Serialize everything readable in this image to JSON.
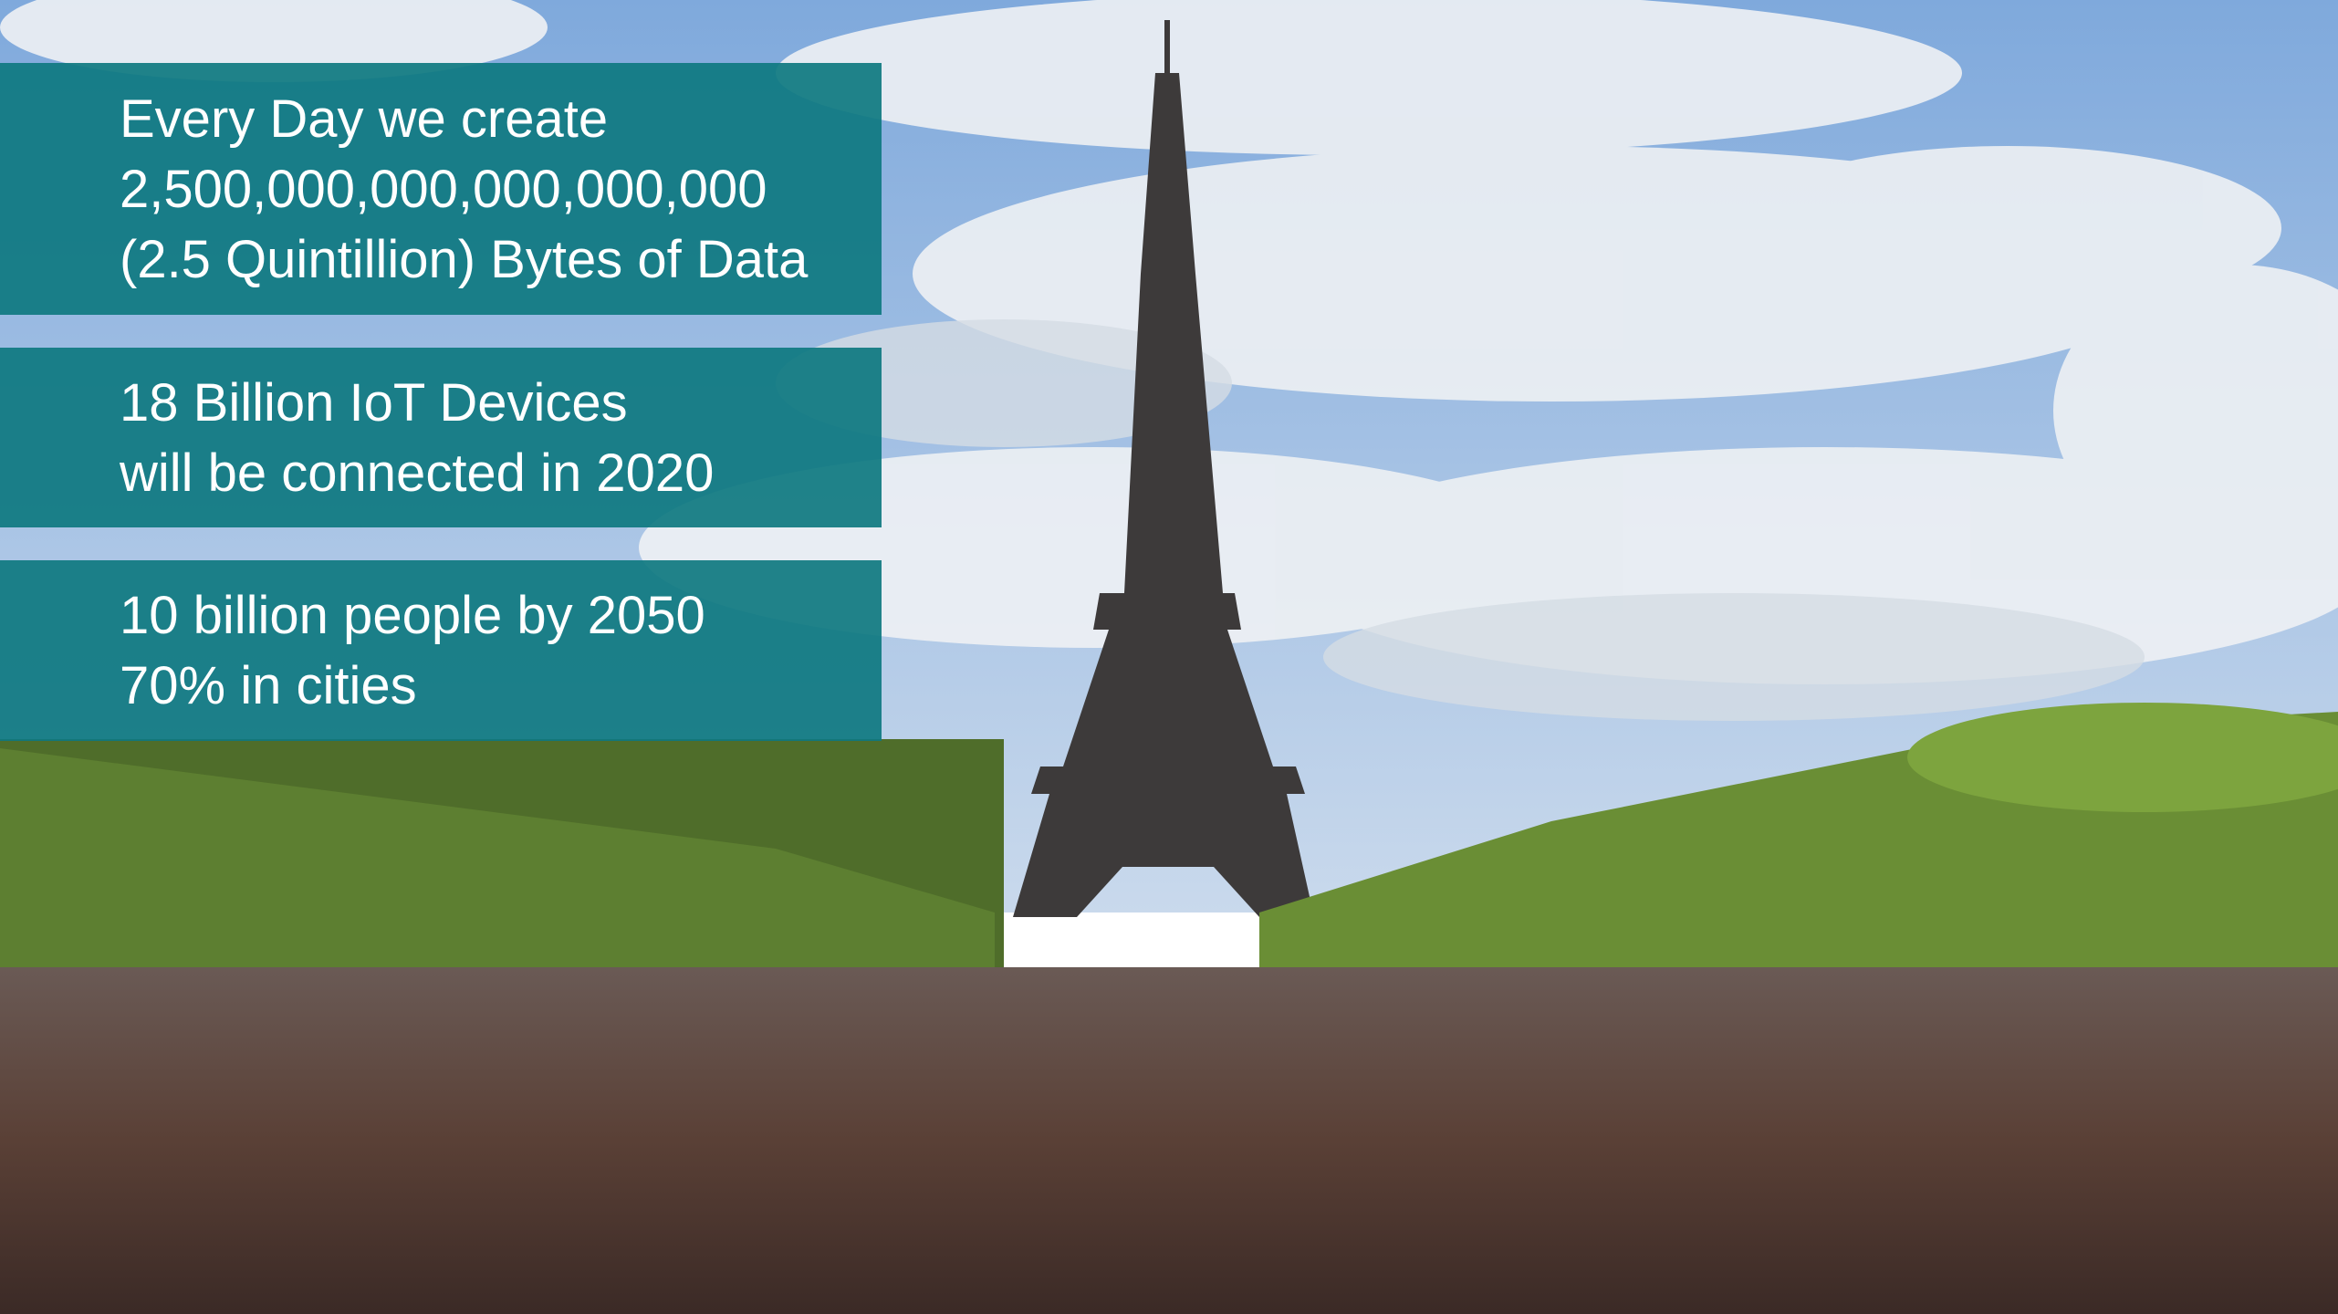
{
  "boxes": [
    {
      "lines": [
        "Every Day we create",
        "2,500,000,000,000,000,000",
        "(2.5 Quintillion) Bytes of Data"
      ]
    },
    {
      "lines": [
        "18 Billion IoT Devices",
        "will be connected in 2020"
      ]
    },
    {
      "lines": [
        "10 billion people by 2050",
        "70% in cities"
      ]
    }
  ]
}
